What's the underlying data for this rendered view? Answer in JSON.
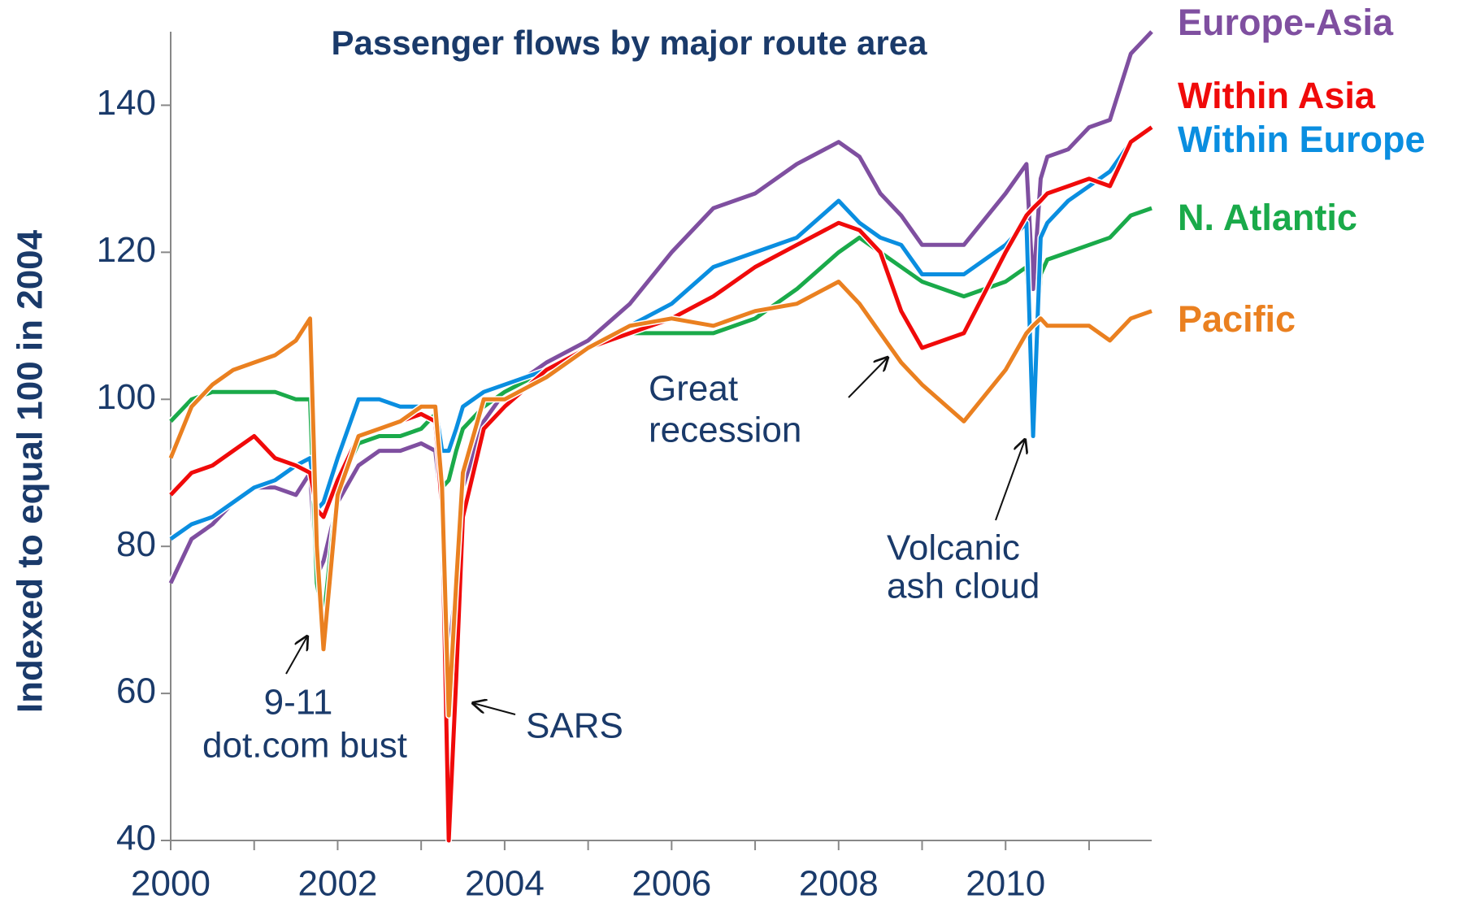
{
  "chart_data": {
    "type": "line",
    "title": "Passenger flows by major route area",
    "y_axis_label": "Indexed to equal 100 in 2004",
    "x": [
      2000.0,
      2000.25,
      2000.5,
      2000.75,
      2001.0,
      2001.25,
      2001.5,
      2001.67,
      2001.75,
      2001.83,
      2002.0,
      2002.25,
      2002.5,
      2002.75,
      2003.0,
      2003.17,
      2003.25,
      2003.33,
      2003.42,
      2003.5,
      2003.75,
      2004.0,
      2004.5,
      2005.0,
      2005.5,
      2006.0,
      2006.5,
      2007.0,
      2007.5,
      2008.0,
      2008.25,
      2008.5,
      2008.75,
      2009.0,
      2009.5,
      2010.0,
      2010.25,
      2010.33,
      2010.42,
      2010.5,
      2010.75,
      2011.0,
      2011.25,
      2011.5,
      2011.75
    ],
    "series": [
      {
        "name": "Europe-Asia",
        "color": "#7f4fa0",
        "values": [
          75,
          81,
          83,
          86,
          88,
          88,
          87,
          90,
          76,
          78,
          86,
          91,
          93,
          93,
          94,
          93,
          85,
          65,
          75,
          88,
          97,
          101,
          105,
          108,
          113,
          120,
          126,
          128,
          132,
          135,
          133,
          128,
          125,
          121,
          121,
          128,
          132,
          115,
          130,
          133,
          134,
          137,
          138,
          147,
          150
        ]
      },
      {
        "name": "Within Asia",
        "color": "#f00a0a",
        "values": [
          87,
          90,
          91,
          93,
          95,
          92,
          91,
          90,
          85,
          84,
          89,
          95,
          96,
          97,
          98,
          97,
          85,
          40,
          62,
          84,
          96,
          99,
          104,
          107,
          109,
          111,
          114,
          118,
          121,
          124,
          123,
          120,
          112,
          107,
          109,
          120,
          125,
          126,
          127,
          128,
          129,
          130,
          129,
          135,
          137
        ]
      },
      {
        "name": "Within Europe",
        "color": "#0a8ee0",
        "values": [
          81,
          83,
          84,
          86,
          88,
          89,
          91,
          92,
          85,
          86,
          92,
          100,
          100,
          99,
          99,
          99,
          93,
          93,
          96,
          99,
          101,
          102,
          104,
          107,
          110,
          113,
          118,
          120,
          122,
          127,
          124,
          122,
          121,
          117,
          117,
          121,
          124,
          95,
          122,
          124,
          127,
          129,
          131,
          135,
          137
        ]
      },
      {
        "name": "N. Atlantic",
        "color": "#1aaa4a",
        "values": [
          97,
          100,
          101,
          101,
          101,
          101,
          100,
          100,
          75,
          70,
          88,
          94,
          95,
          95,
          96,
          98,
          88,
          89,
          93,
          96,
          99,
          101,
          104,
          107,
          109,
          109,
          109,
          111,
          115,
          120,
          122,
          120,
          118,
          116,
          114,
          116,
          118,
          100,
          117,
          119,
          120,
          121,
          122,
          125,
          126
        ]
      },
      {
        "name": "Pacific",
        "color": "#ea8020",
        "values": [
          92,
          99,
          102,
          104,
          105,
          106,
          108,
          111,
          80,
          66,
          87,
          95,
          96,
          97,
          99,
          99,
          88,
          57,
          75,
          90,
          100,
          100,
          103,
          107,
          110,
          111,
          110,
          112,
          113,
          116,
          113,
          109,
          105,
          102,
          97,
          104,
          109,
          110,
          111,
          110,
          110,
          110,
          108,
          111,
          112
        ]
      }
    ],
    "xlim": [
      2000,
      2011.75
    ],
    "xticks": [
      2000,
      2002,
      2004,
      2006,
      2008,
      2010
    ],
    "xminor_ticks": [
      2001,
      2003,
      2005,
      2007,
      2009,
      2011
    ],
    "ylim": [
      40,
      150
    ],
    "yticks": [
      40,
      60,
      80,
      100,
      120,
      140
    ],
    "grid": false,
    "annotations": [
      {
        "text": [
          "9-11",
          "dot.com bust"
        ]
      },
      {
        "text": [
          "SARS"
        ]
      },
      {
        "text": [
          "Great",
          "recession"
        ]
      },
      {
        "text": [
          "Volcanic",
          "ash cloud"
        ]
      }
    ]
  }
}
